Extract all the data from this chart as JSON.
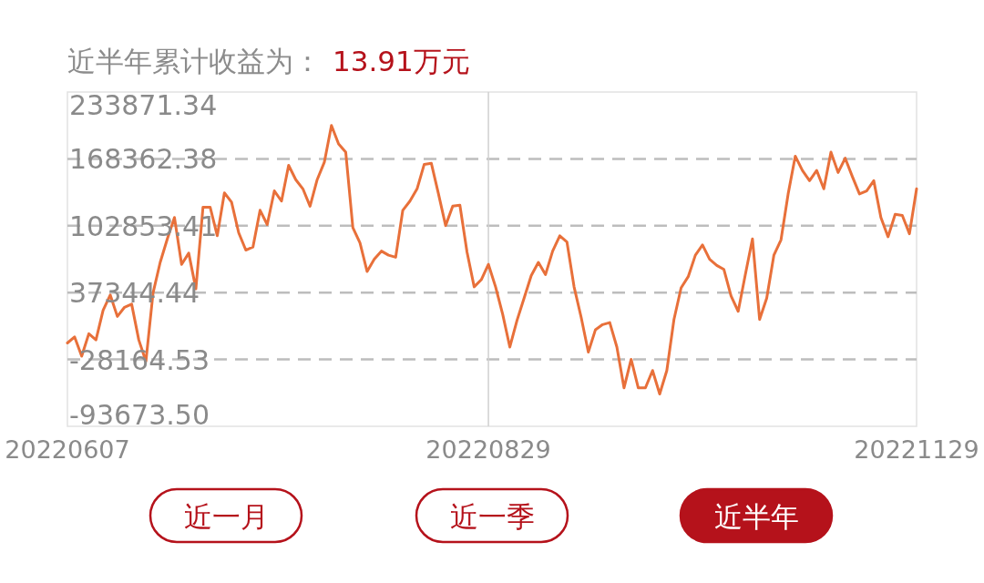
{
  "chart_data": {
    "type": "line",
    "title": "近半年累计收益为：",
    "subtitle": "13.91万元",
    "categories": [
      "20220607",
      null,
      null,
      null,
      null,
      null,
      null,
      null,
      null,
      null,
      null,
      null,
      null,
      null,
      null,
      null,
      null,
      null,
      null,
      null,
      null,
      null,
      null,
      null,
      null,
      null,
      null,
      null,
      null,
      null,
      null,
      null,
      null,
      null,
      null,
      null,
      null,
      null,
      null,
      null,
      null,
      null,
      null,
      null,
      null,
      null,
      null,
      null,
      null,
      null,
      null,
      null,
      null,
      null,
      null,
      null,
      null,
      null,
      null,
      "20220829",
      null,
      null,
      null,
      null,
      null,
      null,
      null,
      null,
      null,
      null,
      null,
      null,
      null,
      null,
      null,
      null,
      null,
      null,
      null,
      null,
      null,
      null,
      null,
      null,
      null,
      null,
      null,
      null,
      null,
      null,
      null,
      null,
      null,
      null,
      null,
      null,
      null,
      null,
      null,
      null,
      null,
      null,
      null,
      null,
      null,
      null,
      null,
      null,
      null,
      null,
      null,
      null,
      null,
      null,
      null,
      null,
      null,
      null,
      null,
      "20221129"
    ],
    "series": [
      {
        "color": "#e8703a",
        "values": [
          -12000,
          -6000,
          -25000,
          -3000,
          -9000,
          20000,
          35000,
          14000,
          23000,
          26000,
          -9000,
          -30000,
          37000,
          67000,
          90000,
          111000,
          65000,
          76000,
          41000,
          121000,
          121000,
          93000,
          135000,
          126000,
          96000,
          79000,
          82000,
          118000,
          104000,
          137000,
          127000,
          162000,
          148000,
          139000,
          122000,
          148000,
          165000,
          201000,
          183000,
          175000,
          101000,
          86000,
          58000,
          70000,
          78000,
          74000,
          72000,
          118000,
          127000,
          139000,
          163000,
          164000,
          134000,
          103000,
          122000,
          123000,
          77000,
          43000,
          50000,
          65000,
          43000,
          16000,
          -16000,
          10000,
          32000,
          54000,
          67000,
          55000,
          78000,
          93000,
          87000,
          43000,
          13000,
          -21000,
          1000,
          6000,
          8000,
          -16000,
          -56000,
          -28000,
          -56000,
          -56000,
          -39000,
          -62000,
          -39000,
          11000,
          42000,
          53000,
          74000,
          84000,
          70000,
          64000,
          60000,
          34000,
          19000,
          55000,
          90000,
          11000,
          32000,
          74000,
          89000,
          134000,
          171000,
          157000,
          147000,
          157000,
          139000,
          175000,
          155000,
          169000,
          151000,
          134000,
          137000,
          147000,
          111000,
          92000,
          114000,
          113000,
          95000,
          139000
        ]
      }
    ],
    "ylim": [
      -93673.5,
      233871.34
    ],
    "yticks": [
      {
        "value": 233871.34,
        "label": "233871.34"
      },
      {
        "value": 168362.38,
        "label": "168362.38"
      },
      {
        "value": 102853.41,
        "label": "102853.41"
      },
      {
        "value": 37344.44,
        "label": "37344.44"
      },
      {
        "value": -28164.53,
        "label": "-28164.53"
      },
      {
        "value": -93673.5,
        "label": "-93673.50"
      }
    ],
    "grid": "y",
    "marker": "none",
    "line_style": "solid",
    "ref_lines": [
      {
        "axis": "x",
        "value": "20220829",
        "color": "#d0d0d0"
      }
    ],
    "annotations": [
      "近一月",
      "近一季",
      "近半年"
    ]
  }
}
